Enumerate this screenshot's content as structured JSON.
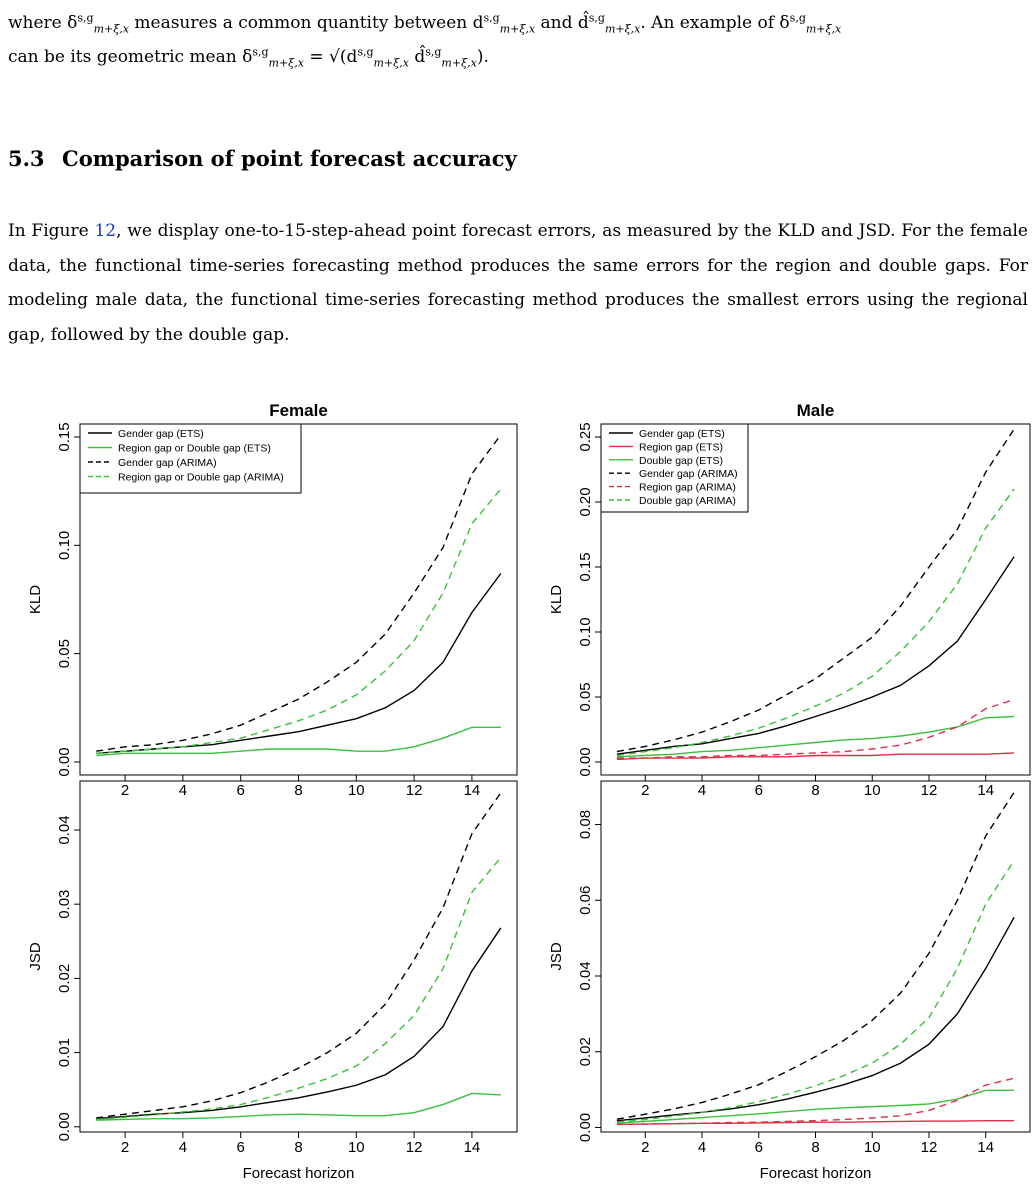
{
  "top_text": {
    "line1_a": "where δ",
    "line1_sup": "s,g",
    "line1_sub": "m+ξ,x",
    "line1_b": " measures a common quantity between d",
    "line1_c": " and d̂",
    "line1_d": ". An example of δ",
    "line2_a": "can be its geometric mean δ",
    "line2_b": " = √(d",
    "line2_c": " d̂",
    "line2_d": ")."
  },
  "section": {
    "number": "5.3",
    "title": "Comparison of point forecast accuracy"
  },
  "paragraph": {
    "pre_link": "In Figure ",
    "link": "12",
    "post_link": ", we display one-to-15-step-ahead point forecast errors, as measured by the KLD and JSD. For the female data, the functional time-series forecasting method produces the same errors for the region and double gaps. For modeling male data, the functional time-series forecasting method produces the smallest errors using the regional gap, followed by the double gap."
  },
  "figure": {
    "xlabel": "Forecast horizon",
    "colors": {
      "black": "#000000",
      "green": "#3cbf3c",
      "red": "#df3048"
    },
    "chart_data": [
      {
        "id": "female-kld",
        "type": "line",
        "title": "Female",
        "ylabel": "KLD",
        "xlim": [
          0.44,
          15.56
        ],
        "ylim": [
          -0.006,
          0.156
        ],
        "xticks": [
          2,
          4,
          6,
          8,
          10,
          12,
          14
        ],
        "yticks": [
          0.0,
          0.05,
          0.1,
          0.15
        ],
        "ytick_labels": [
          "0.00",
          "0.05",
          "0.10",
          "0.15"
        ],
        "x": [
          1,
          2,
          3,
          4,
          5,
          6,
          7,
          8,
          9,
          10,
          11,
          12,
          13,
          14,
          15
        ],
        "legend": "top-left",
        "series": [
          {
            "name": "Gender gap (ETS)",
            "color": "black",
            "dash": false,
            "values": [
              0.004,
              0.005,
              0.006,
              0.007,
              0.008,
              0.01,
              0.012,
              0.014,
              0.017,
              0.02,
              0.025,
              0.033,
              0.046,
              0.069,
              0.087
            ]
          },
          {
            "name": "Region gap or Double gap (ETS)",
            "color": "green",
            "dash": false,
            "values": [
              0.003,
              0.004,
              0.004,
              0.004,
              0.004,
              0.005,
              0.006,
              0.006,
              0.006,
              0.005,
              0.005,
              0.007,
              0.011,
              0.016,
              0.016
            ]
          },
          {
            "name": "Gender gap (ARIMA)",
            "color": "black",
            "dash": true,
            "values": [
              0.005,
              0.007,
              0.008,
              0.01,
              0.013,
              0.017,
              0.023,
              0.029,
              0.037,
              0.046,
              0.059,
              0.078,
              0.099,
              0.133,
              0.151
            ]
          },
          {
            "name": "Region gap or Double gap (ARIMA)",
            "color": "green",
            "dash": true,
            "values": [
              0.004,
              0.005,
              0.006,
              0.007,
              0.009,
              0.011,
              0.015,
              0.019,
              0.024,
              0.031,
              0.042,
              0.056,
              0.078,
              0.11,
              0.126
            ]
          }
        ]
      },
      {
        "id": "male-kld",
        "type": "line",
        "title": "Male",
        "ylabel": "KLD",
        "xlim": [
          0.44,
          15.56
        ],
        "ylim": [
          -0.01,
          0.26
        ],
        "xticks": [
          2,
          4,
          6,
          8,
          10,
          12,
          14
        ],
        "yticks": [
          0.0,
          0.05,
          0.1,
          0.15,
          0.2,
          0.25
        ],
        "ytick_labels": [
          "0.00",
          "0.05",
          "0.10",
          "0.15",
          "0.20",
          "0.25"
        ],
        "x": [
          1,
          2,
          3,
          4,
          5,
          6,
          7,
          8,
          9,
          10,
          11,
          12,
          13,
          14,
          15
        ],
        "legend": "top-left",
        "series": [
          {
            "name": "Gender gap (ETS)",
            "color": "black",
            "dash": false,
            "values": [
              0.006,
              0.009,
              0.012,
              0.014,
              0.018,
              0.022,
              0.028,
              0.035,
              0.042,
              0.05,
              0.059,
              0.074,
              0.093,
              0.125,
              0.158
            ]
          },
          {
            "name": "Region gap (ETS)",
            "color": "red",
            "dash": false,
            "values": [
              0.002,
              0.003,
              0.003,
              0.003,
              0.004,
              0.004,
              0.004,
              0.005,
              0.005,
              0.005,
              0.006,
              0.006,
              0.006,
              0.006,
              0.007
            ]
          },
          {
            "name": "Double gap (ETS)",
            "color": "green",
            "dash": false,
            "values": [
              0.004,
              0.005,
              0.006,
              0.008,
              0.009,
              0.011,
              0.013,
              0.015,
              0.017,
              0.018,
              0.02,
              0.023,
              0.027,
              0.034,
              0.035
            ]
          },
          {
            "name": "Gender gap (ARIMA)",
            "color": "black",
            "dash": true,
            "values": [
              0.008,
              0.012,
              0.017,
              0.023,
              0.031,
              0.04,
              0.052,
              0.064,
              0.08,
              0.096,
              0.12,
              0.15,
              0.179,
              0.223,
              0.256
            ]
          },
          {
            "name": "Region gap (ARIMA)",
            "color": "red",
            "dash": true,
            "values": [
              0.003,
              0.003,
              0.004,
              0.004,
              0.005,
              0.005,
              0.006,
              0.007,
              0.008,
              0.01,
              0.013,
              0.019,
              0.027,
              0.041,
              0.048
            ]
          },
          {
            "name": "Double gap (ARIMA)",
            "color": "green",
            "dash": true,
            "values": [
              0.005,
              0.008,
              0.011,
              0.015,
              0.02,
              0.026,
              0.034,
              0.043,
              0.053,
              0.066,
              0.085,
              0.108,
              0.137,
              0.18,
              0.21
            ]
          }
        ]
      },
      {
        "id": "female-jsd",
        "type": "line",
        "title": "",
        "ylabel": "JSD",
        "xlim": [
          0.44,
          15.56
        ],
        "ylim": [
          -0.0007,
          0.0466
        ],
        "xticks": [
          2,
          4,
          6,
          8,
          10,
          12,
          14
        ],
        "yticks": [
          0.0,
          0.01,
          0.02,
          0.03,
          0.04
        ],
        "ytick_labels": [
          "0.00",
          "0.01",
          "0.02",
          "0.03",
          "0.04"
        ],
        "x": [
          1,
          2,
          3,
          4,
          5,
          6,
          7,
          8,
          9,
          10,
          11,
          12,
          13,
          14,
          15
        ],
        "legend": "none",
        "series": [
          {
            "color": "black",
            "dash": false,
            "values": [
              0.0011,
              0.0014,
              0.0017,
              0.0019,
              0.0022,
              0.0027,
              0.0033,
              0.0039,
              0.0047,
              0.0056,
              0.007,
              0.0095,
              0.0135,
              0.021,
              0.0268
            ]
          },
          {
            "color": "green",
            "dash": false,
            "values": [
              0.0009,
              0.001,
              0.0011,
              0.0011,
              0.0012,
              0.0014,
              0.0016,
              0.0017,
              0.0016,
              0.0015,
              0.0015,
              0.0019,
              0.003,
              0.0045,
              0.0043
            ]
          },
          {
            "color": "black",
            "dash": true,
            "values": [
              0.0012,
              0.0017,
              0.0022,
              0.0027,
              0.0035,
              0.0046,
              0.0061,
              0.0079,
              0.01,
              0.0126,
              0.0165,
              0.0225,
              0.0295,
              0.0395,
              0.045
            ]
          },
          {
            "color": "green",
            "dash": true,
            "values": [
              0.001,
              0.0013,
              0.0016,
              0.002,
              0.0024,
              0.003,
              0.004,
              0.0052,
              0.0065,
              0.0082,
              0.0112,
              0.015,
              0.0213,
              0.0316,
              0.0363
            ]
          }
        ]
      },
      {
        "id": "male-jsd",
        "type": "line",
        "title": "",
        "ylabel": "JSD",
        "xlim": [
          0.44,
          15.56
        ],
        "ylim": [
          -0.0012,
          0.0915
        ],
        "xticks": [
          2,
          4,
          6,
          8,
          10,
          12,
          14
        ],
        "yticks": [
          0.0,
          0.02,
          0.04,
          0.06,
          0.08
        ],
        "ytick_labels": [
          "0.00",
          "0.02",
          "0.04",
          "0.06",
          "0.08"
        ],
        "x": [
          1,
          2,
          3,
          4,
          5,
          6,
          7,
          8,
          9,
          10,
          11,
          12,
          13,
          14,
          15
        ],
        "legend": "none",
        "series": [
          {
            "color": "black",
            "dash": false,
            "values": [
              0.0018,
              0.0025,
              0.0033,
              0.004,
              0.0049,
              0.006,
              0.0075,
              0.0093,
              0.0113,
              0.0137,
              0.017,
              0.022,
              0.03,
              0.042,
              0.0555
            ]
          },
          {
            "color": "red",
            "dash": false,
            "values": [
              0.0008,
              0.0009,
              0.001,
              0.0011,
              0.0011,
              0.0012,
              0.0013,
              0.0014,
              0.0014,
              0.0015,
              0.0016,
              0.0017,
              0.0017,
              0.0018,
              0.0018
            ]
          },
          {
            "color": "green",
            "dash": false,
            "values": [
              0.0012,
              0.0016,
              0.0021,
              0.0026,
              0.0031,
              0.0036,
              0.0042,
              0.0048,
              0.0052,
              0.0055,
              0.0058,
              0.0062,
              0.0075,
              0.0098,
              0.0098
            ]
          },
          {
            "color": "black",
            "dash": true,
            "values": [
              0.0022,
              0.0035,
              0.0049,
              0.0066,
              0.0088,
              0.0113,
              0.0148,
              0.0187,
              0.023,
              0.0283,
              0.0355,
              0.046,
              0.06,
              0.077,
              0.0885
            ]
          },
          {
            "color": "red",
            "dash": true,
            "values": [
              0.0008,
              0.0009,
              0.001,
              0.0011,
              0.0013,
              0.0014,
              0.0016,
              0.0018,
              0.0021,
              0.0025,
              0.0031,
              0.0045,
              0.0072,
              0.0112,
              0.013
            ]
          },
          {
            "color": "green",
            "dash": true,
            "values": [
              0.0014,
              0.0021,
              0.003,
              0.004,
              0.0052,
              0.0068,
              0.0088,
              0.011,
              0.0137,
              0.017,
              0.022,
              0.029,
              0.042,
              0.059,
              0.0705
            ]
          }
        ]
      }
    ]
  }
}
